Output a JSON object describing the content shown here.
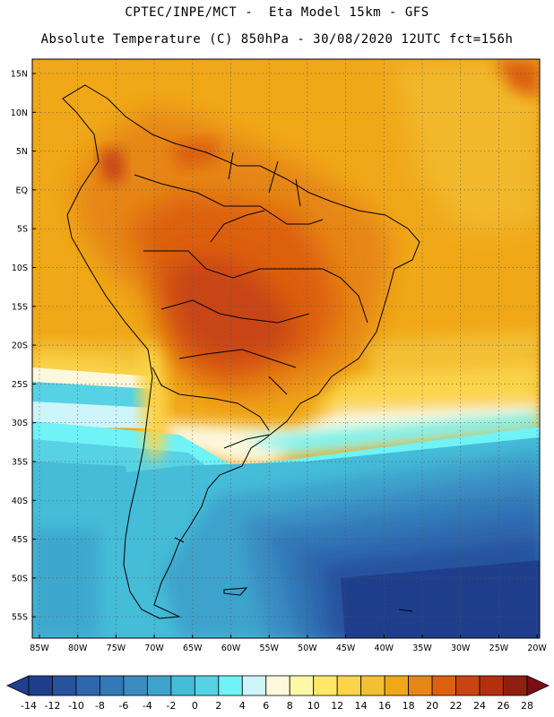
{
  "header": {
    "line1": "CPTEC/INPE/MCT -  Eta Model 15km - GFS",
    "line2": "Absolute Temperature (C) 850hPa - 30/08/2020 12UTC fct=156h"
  },
  "map": {
    "lat_labels": [
      "15N",
      "10N",
      "5N",
      "EQ",
      "5S",
      "10S",
      "15S",
      "20S",
      "25S",
      "30S",
      "35S",
      "40S",
      "45S",
      "50S",
      "55S"
    ],
    "lon_labels": [
      "85W",
      "80W",
      "75W",
      "70W",
      "65W",
      "60W",
      "55W",
      "50W",
      "45W",
      "40W",
      "35W",
      "30W",
      "25W",
      "20W"
    ]
  },
  "colorbar": {
    "labels": [
      "-14",
      "-12",
      "-10",
      "-8",
      "-6",
      "-4",
      "-2",
      "0",
      "2",
      "4",
      "6",
      "8",
      "10",
      "12",
      "14",
      "16",
      "18",
      "20",
      "22",
      "24",
      "26",
      "28"
    ],
    "colors": [
      "#1f3f8c",
      "#27539e",
      "#2e67ae",
      "#3279b8",
      "#3a8cc2",
      "#3ea3cc",
      "#45bcd8",
      "#56d2e4",
      "#6ff3f6",
      "#cdf4f8",
      "#fdf7dc",
      "#fff7a8",
      "#ffe868",
      "#fbd44a",
      "#f3bf35",
      "#f0a818",
      "#e68618",
      "#dd6010",
      "#c84412",
      "#b3300f",
      "#8f2010"
    ],
    "under_color": "#213f8f",
    "over_color": "#7a0e16"
  }
}
